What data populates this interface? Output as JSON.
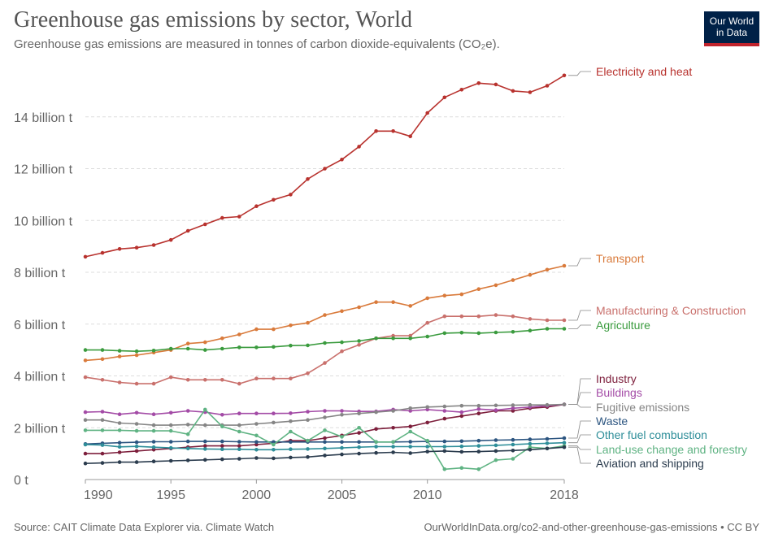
{
  "header": {
    "title": "Greenhouse gas emissions by sector, World",
    "subtitle": "Greenhouse gas emissions are measured in tonnes of carbon dioxide-equivalents (CO₂e)."
  },
  "logo": {
    "line1": "Our World",
    "line2": "in Data",
    "bg_color": "#002147",
    "accent_color": "#c0232c"
  },
  "footer": {
    "source": "Source: CAIT Climate Data Explorer via. Climate Watch",
    "url": "OurWorldInData.org/co2-and-other-greenhouse-gas-emissions • CC BY"
  },
  "chart_data": {
    "type": "line",
    "title": "Greenhouse gas emissions by sector, World",
    "subtitle": "Greenhouse gas emissions are measured in tonnes of carbon dioxide-equivalents (CO₂e).",
    "xlabel": "",
    "ylabel": "",
    "xlim": [
      1990,
      2018
    ],
    "ylim": [
      0,
      16
    ],
    "grid": "horizontal dashed",
    "legend": "right, labels at line ends",
    "x_ticks": [
      {
        "value": 1990,
        "label": "1990"
      },
      {
        "value": 1995,
        "label": "1995"
      },
      {
        "value": 2000,
        "label": "2000"
      },
      {
        "value": 2005,
        "label": "2005"
      },
      {
        "value": 2010,
        "label": "2010"
      },
      {
        "value": 2018,
        "label": "2018"
      }
    ],
    "y_ticks": [
      {
        "value": 0,
        "label": "0 t"
      },
      {
        "value": 2,
        "label": "2 billion t"
      },
      {
        "value": 4,
        "label": "4 billion t"
      },
      {
        "value": 6,
        "label": "6 billion t"
      },
      {
        "value": 8,
        "label": "8 billion t"
      },
      {
        "value": 10,
        "label": "10 billion t"
      },
      {
        "value": 12,
        "label": "12 billion t"
      },
      {
        "value": 14,
        "label": "14 billion t"
      }
    ],
    "x": [
      1990,
      1991,
      1992,
      1993,
      1994,
      1995,
      1996,
      1997,
      1998,
      1999,
      2000,
      2001,
      2002,
      2003,
      2004,
      2005,
      2006,
      2007,
      2008,
      2009,
      2010,
      2011,
      2012,
      2013,
      2014,
      2015,
      2016,
      2017,
      2018
    ],
    "series": [
      {
        "name": "Electricity and heat",
        "color": "#b8322e",
        "values": [
          8.6,
          8.75,
          8.9,
          8.95,
          9.05,
          9.25,
          9.6,
          9.85,
          10.1,
          10.15,
          10.55,
          10.8,
          11.0,
          11.6,
          12.0,
          12.35,
          12.85,
          13.45,
          13.45,
          13.25,
          14.15,
          14.75,
          15.05,
          15.3,
          15.25,
          15.0,
          14.95,
          15.2,
          15.6
        ]
      },
      {
        "name": "Transport",
        "color": "#d97a3b",
        "values": [
          4.6,
          4.65,
          4.75,
          4.8,
          4.9,
          5.0,
          5.25,
          5.3,
          5.45,
          5.6,
          5.8,
          5.8,
          5.95,
          6.05,
          6.35,
          6.5,
          6.65,
          6.85,
          6.85,
          6.7,
          7.0,
          7.1,
          7.15,
          7.35,
          7.5,
          7.7,
          7.9,
          8.1,
          8.25
        ]
      },
      {
        "name": "Manufacturing & Construction",
        "color": "#c9706c",
        "values": [
          3.95,
          3.85,
          3.75,
          3.7,
          3.7,
          3.95,
          3.85,
          3.85,
          3.85,
          3.7,
          3.9,
          3.9,
          3.9,
          4.1,
          4.5,
          4.95,
          5.2,
          5.45,
          5.55,
          5.55,
          6.05,
          6.3,
          6.3,
          6.3,
          6.35,
          6.3,
          6.2,
          6.15,
          6.15
        ]
      },
      {
        "name": "Agriculture",
        "color": "#3a9b3e",
        "values": [
          5.0,
          5.0,
          4.97,
          4.95,
          4.98,
          5.05,
          5.05,
          5.0,
          5.05,
          5.1,
          5.1,
          5.12,
          5.17,
          5.18,
          5.27,
          5.3,
          5.35,
          5.45,
          5.45,
          5.45,
          5.52,
          5.65,
          5.67,
          5.65,
          5.68,
          5.7,
          5.75,
          5.82,
          5.82
        ]
      },
      {
        "name": "Industry",
        "color": "#7d1f3c",
        "values": [
          1.0,
          1.0,
          1.05,
          1.1,
          1.15,
          1.2,
          1.25,
          1.3,
          1.3,
          1.3,
          1.35,
          1.4,
          1.5,
          1.5,
          1.6,
          1.7,
          1.8,
          1.95,
          2.0,
          2.05,
          2.2,
          2.35,
          2.45,
          2.55,
          2.65,
          2.65,
          2.75,
          2.8,
          2.9
        ]
      },
      {
        "name": "Buildings",
        "color": "#a34ba6",
        "values": [
          2.6,
          2.62,
          2.52,
          2.58,
          2.52,
          2.58,
          2.65,
          2.6,
          2.5,
          2.55,
          2.55,
          2.55,
          2.56,
          2.62,
          2.65,
          2.65,
          2.63,
          2.63,
          2.7,
          2.65,
          2.7,
          2.65,
          2.6,
          2.72,
          2.68,
          2.75,
          2.8,
          2.85,
          2.9
        ]
      },
      {
        "name": "Fugitive emissions",
        "color": "#858585",
        "values": [
          2.3,
          2.3,
          2.18,
          2.15,
          2.1,
          2.1,
          2.12,
          2.1,
          2.1,
          2.1,
          2.15,
          2.2,
          2.25,
          2.3,
          2.4,
          2.5,
          2.55,
          2.6,
          2.65,
          2.75,
          2.8,
          2.82,
          2.85,
          2.85,
          2.86,
          2.87,
          2.88,
          2.88,
          2.9
        ]
      },
      {
        "name": "Waste",
        "color": "#2c5580",
        "values": [
          1.37,
          1.4,
          1.42,
          1.44,
          1.46,
          1.46,
          1.47,
          1.47,
          1.47,
          1.46,
          1.45,
          1.45,
          1.45,
          1.45,
          1.45,
          1.45,
          1.45,
          1.45,
          1.45,
          1.46,
          1.47,
          1.47,
          1.48,
          1.5,
          1.52,
          1.53,
          1.55,
          1.57,
          1.6
        ]
      },
      {
        "name": "Other fuel combustion",
        "color": "#2e8e99",
        "values": [
          1.35,
          1.33,
          1.26,
          1.28,
          1.25,
          1.22,
          1.2,
          1.18,
          1.17,
          1.17,
          1.15,
          1.15,
          1.17,
          1.18,
          1.2,
          1.22,
          1.25,
          1.27,
          1.27,
          1.27,
          1.27,
          1.27,
          1.28,
          1.3,
          1.32,
          1.35,
          1.38,
          1.4,
          1.42
        ]
      },
      {
        "name": "Land-use change and forestry",
        "color": "#5fb383",
        "values": [
          1.9,
          1.9,
          1.9,
          1.88,
          1.88,
          1.88,
          1.75,
          2.7,
          2.05,
          1.85,
          1.7,
          1.35,
          1.85,
          1.5,
          1.9,
          1.65,
          2.0,
          1.45,
          1.45,
          1.85,
          1.5,
          0.4,
          0.45,
          0.4,
          0.75,
          0.8,
          1.25,
          1.2,
          1.3
        ]
      },
      {
        "name": "Aviation and shipping",
        "color": "#2b3c4e",
        "values": [
          0.62,
          0.64,
          0.67,
          0.67,
          0.7,
          0.72,
          0.74,
          0.76,
          0.78,
          0.8,
          0.83,
          0.82,
          0.85,
          0.87,
          0.93,
          0.97,
          1.0,
          1.03,
          1.05,
          1.02,
          1.08,
          1.1,
          1.07,
          1.08,
          1.1,
          1.12,
          1.15,
          1.2,
          1.25
        ]
      }
    ]
  }
}
